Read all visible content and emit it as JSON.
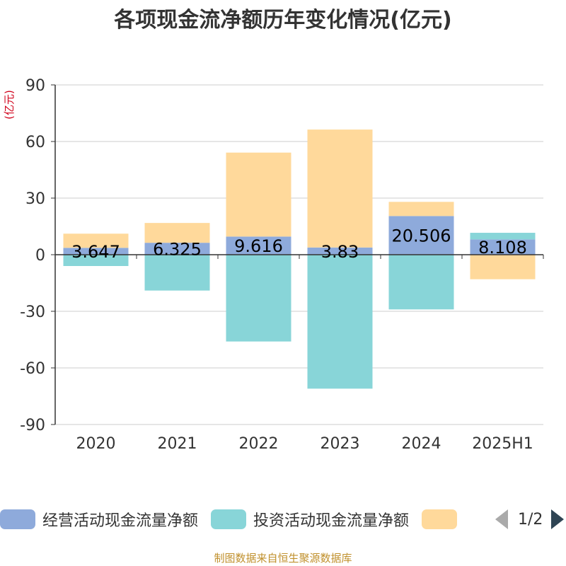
{
  "chart_data": {
    "type": "bar",
    "title": "各项现金流净额历年变化情况(亿元)",
    "unit_label": "(亿元)",
    "categories": [
      "2020",
      "2021",
      "2022",
      "2023",
      "2024",
      "2025H1"
    ],
    "ylim": [
      -90,
      90
    ],
    "yticks": [
      90,
      60,
      30,
      0,
      -30,
      -60,
      -90
    ],
    "grid": true,
    "stacked": true,
    "series": [
      {
        "name": "经营活动现金流量净额",
        "color": "#8eaadb",
        "values": [
          3.647,
          6.325,
          9.616,
          3.83,
          20.506,
          8.108
        ],
        "show_labels": true
      },
      {
        "name": "投资活动现金流量净额",
        "color": "#88d5d8",
        "values": [
          -6,
          -19,
          -46,
          -71,
          -29,
          3.5
        ]
      },
      {
        "name": "",
        "color": "#ffd99b",
        "values": [
          7.5,
          10.5,
          44.5,
          62.5,
          7.5,
          -13
        ]
      }
    ]
  },
  "legend": {
    "items": [
      "经营活动现金流量净额",
      "投资活动现金流量净额",
      ""
    ],
    "page": "1/2"
  },
  "source_text": "制图数据来自恒生聚源数据库",
  "colors": {
    "title": "#333333",
    "unit": "#d0021b",
    "source": "#c0902c",
    "axis": "#333333",
    "grid": "#cccccc"
  }
}
